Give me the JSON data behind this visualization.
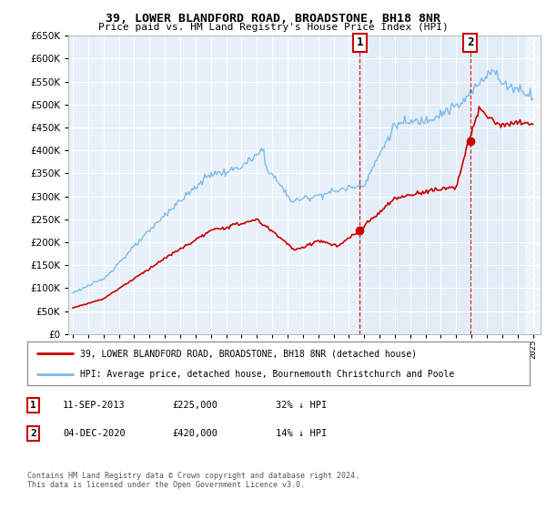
{
  "title": "39, LOWER BLANDFORD ROAD, BROADSTONE, BH18 8NR",
  "subtitle": "Price paid vs. HM Land Registry's House Price Index (HPI)",
  "legend_line1": "39, LOWER BLANDFORD ROAD, BROADSTONE, BH18 8NR (detached house)",
  "legend_line2": "HPI: Average price, detached house, Bournemouth Christchurch and Poole",
  "annotation1_date": "11-SEP-2013",
  "annotation1_price": "£225,000",
  "annotation1_hpi": "32% ↓ HPI",
  "annotation2_date": "04-DEC-2020",
  "annotation2_price": "£420,000",
  "annotation2_hpi": "14% ↓ HPI",
  "footer": "Contains HM Land Registry data © Crown copyright and database right 2024.\nThis data is licensed under the Open Government Licence v3.0.",
  "hpi_color": "#7ab8e8",
  "property_color": "#cc0000",
  "annotation_box_color": "#cc0000",
  "background_plot": "#e8f1fa",
  "ylim": [
    0,
    650000
  ],
  "yticks": [
    0,
    50000,
    100000,
    150000,
    200000,
    250000,
    300000,
    350000,
    400000,
    450000,
    500000,
    550000,
    600000,
    650000
  ],
  "xlim_start": 1994.7,
  "xlim_end": 2025.5,
  "sale1_x": 2013.7,
  "sale1_y": 225000,
  "sale2_x": 2020.92,
  "sale2_y": 420000
}
